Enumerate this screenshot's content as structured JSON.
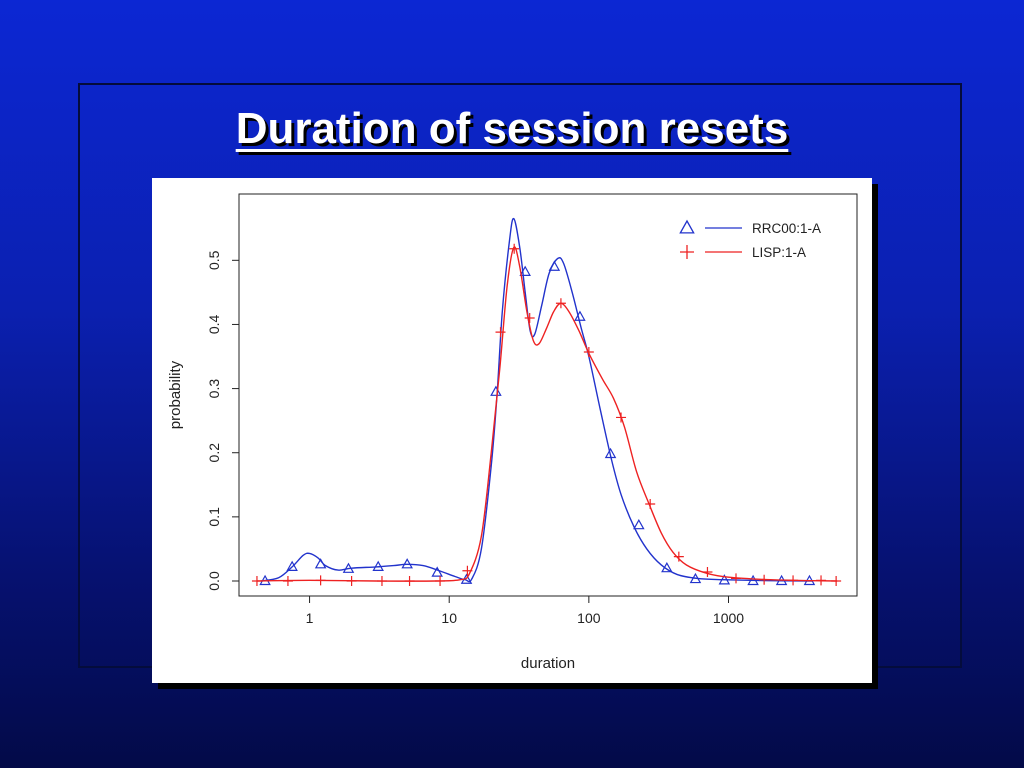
{
  "slide": {
    "title": "Duration of session resets",
    "colors": {
      "background_top": "#0c27d3",
      "background_bottom": "#030a48",
      "title": "#ffffff"
    }
  },
  "chart_data": {
    "type": "line",
    "xscale": "log",
    "xlabel": "duration",
    "ylabel": "probability",
    "xlim": [
      0.4,
      6500
    ],
    "ylim": [
      0,
      0.58
    ],
    "xticks": [
      1,
      10,
      100,
      1000
    ],
    "xtick_labels": [
      "1",
      "10",
      "100",
      "1000"
    ],
    "yticks": [
      0,
      0.1,
      0.2,
      0.3,
      0.4,
      0.5
    ],
    "ytick_labels": [
      "0.0",
      "0.1",
      "0.2",
      "0.3",
      "0.4",
      "0.5"
    ],
    "legend_position": "top-right",
    "series": [
      {
        "name": "RRC00:1-A",
        "color": "#2233cc",
        "marker": "triangle",
        "curve": [
          [
            0.45,
            0.0
          ],
          [
            0.6,
            0.005
          ],
          [
            0.75,
            0.022
          ],
          [
            0.9,
            0.04
          ],
          [
            1.0,
            0.043
          ],
          [
            1.15,
            0.036
          ],
          [
            1.3,
            0.024
          ],
          [
            1.6,
            0.017
          ],
          [
            2.0,
            0.02
          ],
          [
            3.0,
            0.022
          ],
          [
            4.0,
            0.024
          ],
          [
            5.0,
            0.026
          ],
          [
            6.5,
            0.024
          ],
          [
            8.5,
            0.016
          ],
          [
            11,
            0.007
          ],
          [
            13,
            0.002
          ],
          [
            14.5,
            0.003
          ],
          [
            17,
            0.05
          ],
          [
            20,
            0.18
          ],
          [
            22,
            0.29
          ],
          [
            24,
            0.42
          ],
          [
            27,
            0.53
          ],
          [
            29,
            0.565
          ],
          [
            32,
            0.52
          ],
          [
            35,
            0.45
          ],
          [
            38,
            0.39
          ],
          [
            41,
            0.385
          ],
          [
            46,
            0.43
          ],
          [
            52,
            0.48
          ],
          [
            60,
            0.503
          ],
          [
            66,
            0.495
          ],
          [
            76,
            0.45
          ],
          [
            88,
            0.395
          ],
          [
            100,
            0.35
          ],
          [
            120,
            0.27
          ],
          [
            145,
            0.19
          ],
          [
            170,
            0.135
          ],
          [
            210,
            0.085
          ],
          [
            260,
            0.05
          ],
          [
            330,
            0.025
          ],
          [
            430,
            0.01
          ],
          [
            600,
            0.004
          ],
          [
            900,
            0.002
          ],
          [
            2000,
            0.0005
          ],
          [
            4000,
            0.0
          ]
        ],
        "markers": [
          [
            0.48,
            0.0
          ],
          [
            0.75,
            0.022
          ],
          [
            1.2,
            0.026
          ],
          [
            1.9,
            0.019
          ],
          [
            3.1,
            0.022
          ],
          [
            5.0,
            0.026
          ],
          [
            8.2,
            0.013
          ],
          [
            13.3,
            0.002
          ],
          [
            21.6,
            0.295
          ],
          [
            35.0,
            0.482
          ],
          [
            56.6,
            0.49
          ],
          [
            86.3,
            0.412
          ],
          [
            143,
            0.198
          ],
          [
            228,
            0.087
          ],
          [
            362,
            0.02
          ],
          [
            580,
            0.003
          ],
          [
            934,
            0.001
          ],
          [
            1500,
            0.0
          ],
          [
            2400,
            0.0
          ],
          [
            3800,
            0.0
          ]
        ]
      },
      {
        "name": "LISP:1-A",
        "color": "#ee2222",
        "marker": "plus",
        "curve": [
          [
            0.42,
            0.0
          ],
          [
            1,
            0.001
          ],
          [
            3,
            0.0
          ],
          [
            8,
            0.0
          ],
          [
            12,
            0.002
          ],
          [
            14,
            0.012
          ],
          [
            17,
            0.07
          ],
          [
            20,
            0.2
          ],
          [
            23,
            0.33
          ],
          [
            26,
            0.46
          ],
          [
            29,
            0.52
          ],
          [
            32,
            0.49
          ],
          [
            36,
            0.42
          ],
          [
            40,
            0.375
          ],
          [
            44,
            0.37
          ],
          [
            50,
            0.395
          ],
          [
            56,
            0.42
          ],
          [
            63,
            0.433
          ],
          [
            72,
            0.42
          ],
          [
            85,
            0.39
          ],
          [
            100,
            0.355
          ],
          [
            125,
            0.315
          ],
          [
            150,
            0.285
          ],
          [
            180,
            0.24
          ],
          [
            220,
            0.17
          ],
          [
            270,
            0.12
          ],
          [
            330,
            0.075
          ],
          [
            400,
            0.045
          ],
          [
            500,
            0.025
          ],
          [
            700,
            0.012
          ],
          [
            1000,
            0.006
          ],
          [
            2000,
            0.002
          ],
          [
            4000,
            0.0005
          ],
          [
            6000,
            0.0
          ]
        ],
        "markers": [
          [
            0.42,
            0.0
          ],
          [
            0.7,
            0.0
          ],
          [
            1.2,
            0.001
          ],
          [
            2.0,
            0.0
          ],
          [
            3.3,
            0.0
          ],
          [
            5.2,
            0.0
          ],
          [
            8.6,
            0.0
          ],
          [
            13.5,
            0.016
          ],
          [
            23.3,
            0.388
          ],
          [
            29.2,
            0.518
          ],
          [
            37.7,
            0.41
          ],
          [
            63.1,
            0.433
          ],
          [
            100,
            0.357
          ],
          [
            170,
            0.255
          ],
          [
            275,
            0.12
          ],
          [
            441,
            0.038
          ],
          [
            707,
            0.014
          ],
          [
            1132,
            0.004
          ],
          [
            1800,
            0.002
          ],
          [
            2900,
            0.001
          ],
          [
            4600,
            0.001
          ],
          [
            5900,
            0.0
          ]
        ]
      }
    ]
  }
}
